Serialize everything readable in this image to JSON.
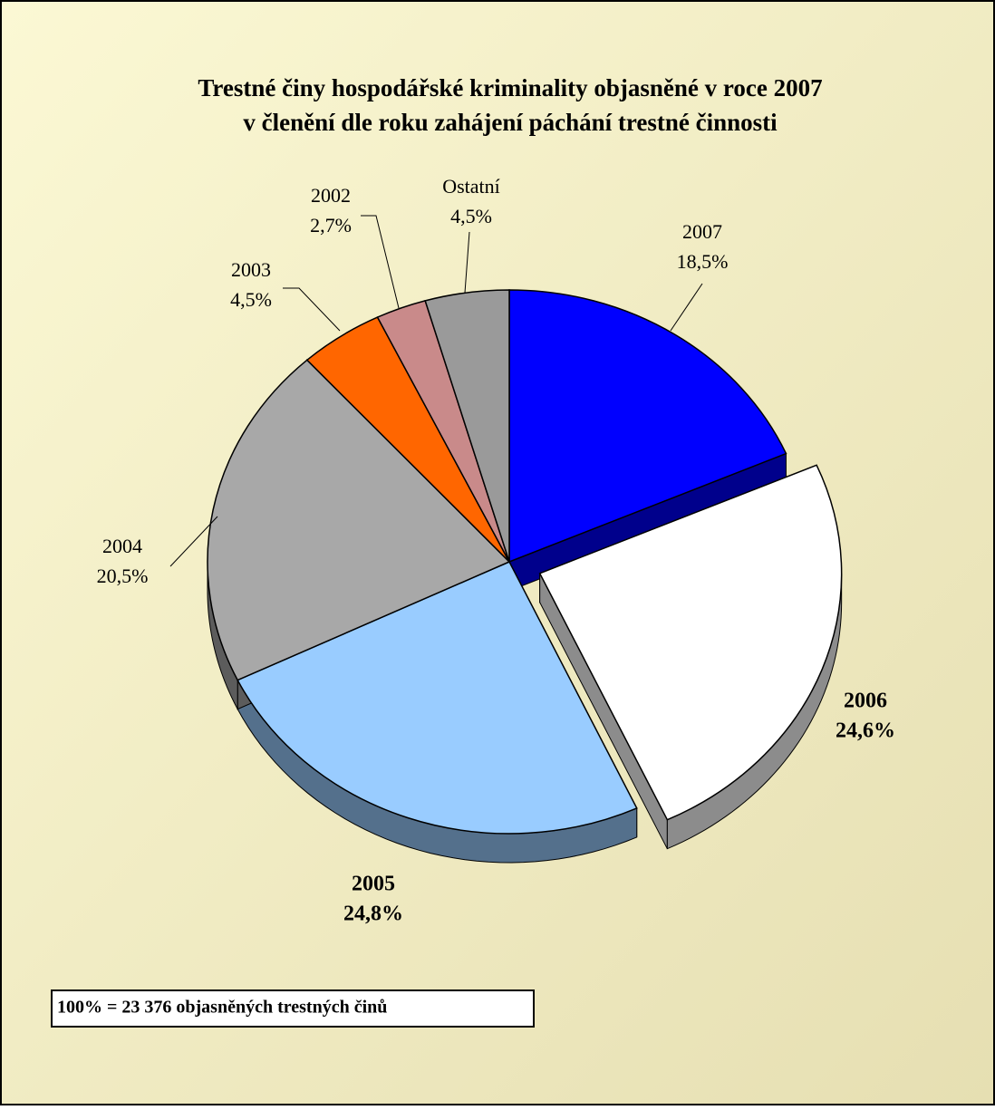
{
  "chart_data": {
    "type": "pie",
    "title": "Trestné činy hospodářské kriminality objasněné v roce 2007",
    "subtitle": "v členění dle roku zahájení páchání trestné činnosti",
    "categories": [
      "2007",
      "2006",
      "2005",
      "2004",
      "2003",
      "2002",
      "Ostatní"
    ],
    "values": [
      18.5,
      24.6,
      24.8,
      20.5,
      4.5,
      2.7,
      4.5
    ],
    "value_labels": [
      "18,5%",
      "24,6%",
      "24,8%",
      "20,5%",
      "4,5%",
      "2,7%",
      "4,5%"
    ],
    "colors": [
      "#0000ff",
      "#ffffff",
      "#99ccff",
      "#a8a8a8",
      "#ff6600",
      "#c98a8a",
      "#9a9a9a"
    ],
    "annotation": "100% =  23 376 objasněných trestných činů"
  }
}
